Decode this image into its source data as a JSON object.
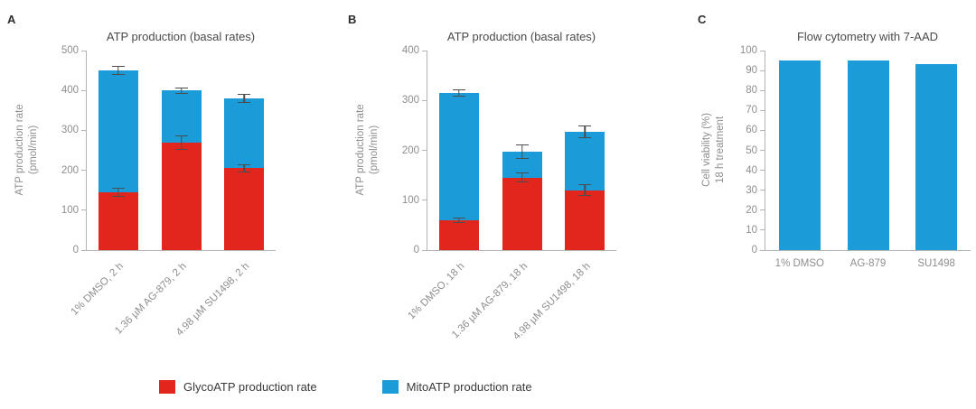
{
  "panels": [
    {
      "letter": "A"
    },
    {
      "letter": "B"
    },
    {
      "letter": "C"
    }
  ],
  "legend": {
    "items": [
      {
        "label": "GlycoATP production rate",
        "color": "#e2261d"
      },
      {
        "label": "MitoATP production rate",
        "color": "#1b9cd9"
      }
    ]
  },
  "chart_data": [
    {
      "type": "bar",
      "panel": "A",
      "stacked": true,
      "grid": false,
      "legend_position": "bottom",
      "rotated_xlabels": true,
      "title": "ATP production (basal rates)",
      "ylabel": "ATP production rate (pmol/min)",
      "ylabel_lines": [
        "ATP production rate",
        "(pmol/min)"
      ],
      "ylim": [
        0,
        500
      ],
      "ytick_step": 100,
      "categories": [
        "1% DMSO, 2 h",
        "1.36 µM AG-879, 2 h",
        "4.98 µM SU1498, 2 h"
      ],
      "series": [
        {
          "name": "GlycoATP production rate",
          "color": "#e2261d",
          "values": [
            145,
            270,
            205
          ],
          "errors": [
            12,
            18,
            10
          ]
        },
        {
          "name": "MitoATP production rate",
          "color": "#1b9cd9",
          "values": [
            305,
            130,
            175
          ],
          "errors": [
            12,
            8,
            12
          ]
        }
      ],
      "stack_totals": [
        450,
        400,
        380
      ]
    },
    {
      "type": "bar",
      "panel": "B",
      "stacked": true,
      "grid": false,
      "legend_position": "bottom",
      "rotated_xlabels": true,
      "title": "ATP production (basal rates)",
      "ylabel": "ATP production rate (pmol/min)",
      "ylabel_lines": [
        "ATP production rate",
        "(pmol/min)"
      ],
      "ylim": [
        0,
        400
      ],
      "ytick_step": 100,
      "categories": [
        "1% DMSO, 18 h",
        "1.36 µM AG-879, 18 h",
        "4.98 µM SU1498, 18 h"
      ],
      "series": [
        {
          "name": "GlycoATP production rate",
          "color": "#e2261d",
          "values": [
            60,
            145,
            120
          ],
          "errors": [
            5,
            10,
            12
          ]
        },
        {
          "name": "MitoATP production rate",
          "color": "#1b9cd9",
          "values": [
            255,
            52,
            117
          ],
          "errors": [
            8,
            15,
            12
          ]
        }
      ],
      "stack_totals": [
        315,
        197,
        237
      ]
    },
    {
      "type": "bar",
      "panel": "C",
      "stacked": false,
      "grid": false,
      "rotated_xlabels": false,
      "title": "Flow cytometry with 7-AAD",
      "ylabel": "Cell viability (%) 18 h treatment",
      "ylabel_lines": [
        "Cell viability (%)",
        "18 h treatment"
      ],
      "ylim": [
        0,
        100
      ],
      "ytick_step": 10,
      "categories": [
        "1% DMSO",
        "AG-879",
        "SU1498"
      ],
      "series": [
        {
          "name": "Cell viability",
          "color": "#1b9cd9",
          "values": [
            95,
            95,
            93
          ]
        }
      ]
    }
  ]
}
